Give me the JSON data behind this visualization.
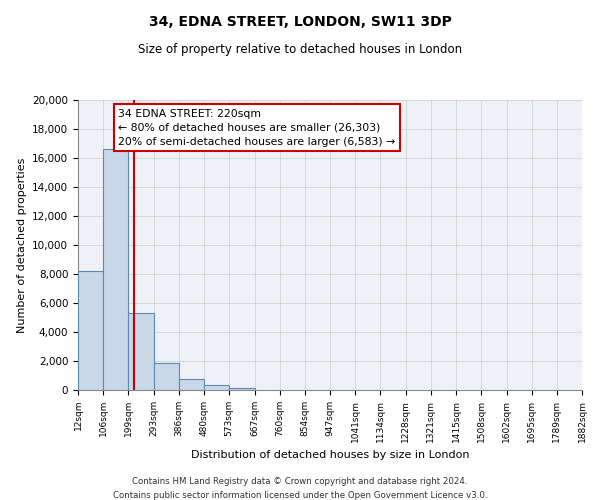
{
  "title": "34, EDNA STREET, LONDON, SW11 3DP",
  "subtitle": "Size of property relative to detached houses in London",
  "xlabel": "Distribution of detached houses by size in London",
  "ylabel": "Number of detached properties",
  "bin_labels": [
    "12sqm",
    "106sqm",
    "199sqm",
    "293sqm",
    "386sqm",
    "480sqm",
    "573sqm",
    "667sqm",
    "760sqm",
    "854sqm",
    "947sqm",
    "1041sqm",
    "1134sqm",
    "1228sqm",
    "1321sqm",
    "1415sqm",
    "1508sqm",
    "1602sqm",
    "1695sqm",
    "1789sqm",
    "1882sqm"
  ],
  "bin_edges": [
    12,
    106,
    199,
    293,
    386,
    480,
    573,
    667,
    760,
    854,
    947,
    1041,
    1134,
    1228,
    1321,
    1415,
    1508,
    1602,
    1695,
    1789,
    1882
  ],
  "bar_heights": [
    8200,
    16600,
    5300,
    1850,
    780,
    320,
    170,
    0,
    0,
    0,
    0,
    0,
    0,
    0,
    0,
    0,
    0,
    0,
    0,
    0
  ],
  "bar_color": "#c8d8e8",
  "bar_edge_color": "#5b8ab5",
  "grid_color": "#cccccc",
  "bg_color": "#eef2f7",
  "red_line_x": 220,
  "annotation_title": "34 EDNA STREET: 220sqm",
  "annotation_line1": "← 80% of detached houses are smaller (26,303)",
  "annotation_line2": "20% of semi-detached houses are larger (6,583) →",
  "annotation_box_color": "#ffffff",
  "annotation_box_edge": "#cc0000",
  "ylim": [
    0,
    20000
  ],
  "yticks": [
    0,
    2000,
    4000,
    6000,
    8000,
    10000,
    12000,
    14000,
    16000,
    18000,
    20000
  ],
  "footnote1": "Contains HM Land Registry data © Crown copyright and database right 2024.",
  "footnote2": "Contains public sector information licensed under the Open Government Licence v3.0."
}
